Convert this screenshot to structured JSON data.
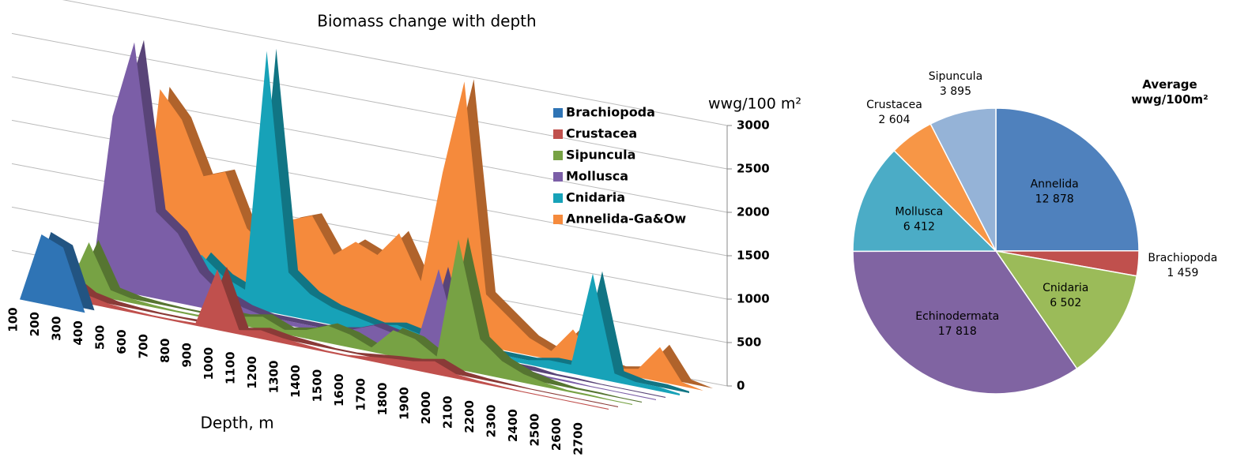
{
  "chart_data": [
    {
      "type": "area3d",
      "title": "Biomass change with depth",
      "x_label": "Depth, m",
      "y_label": "wwg/100 m²",
      "categories": [
        "100",
        "200",
        "300",
        "400",
        "500",
        "600",
        "700",
        "800",
        "900",
        "1000",
        "1100",
        "1200",
        "1300",
        "1400",
        "1500",
        "1600",
        "1700",
        "1800",
        "1900",
        "2000",
        "2100",
        "2200",
        "2300",
        "2400",
        "2500",
        "2600",
        "2700"
      ],
      "series": [
        {
          "name": "Brachiopoda",
          "color": "#2f74b5",
          "values": [
            0,
            800,
            700,
            0,
            0,
            0,
            0,
            0,
            0,
            0,
            0,
            0,
            0,
            0,
            0,
            0,
            0,
            0,
            0,
            0,
            0,
            0,
            0,
            0,
            0,
            0,
            0
          ]
        },
        {
          "name": "Crustacea",
          "color": "#c0504d",
          "values": [
            200,
            250,
            100,
            50,
            30,
            20,
            20,
            30,
            700,
            50,
            100,
            60,
            40,
            20,
            20,
            50,
            80,
            100,
            150,
            50,
            30,
            20,
            10,
            10,
            10,
            10,
            10
          ]
        },
        {
          "name": "Sipuncula",
          "color": "#77a244",
          "values": [
            0,
            600,
            100,
            50,
            30,
            20,
            20,
            100,
            100,
            150,
            50,
            100,
            200,
            150,
            50,
            300,
            250,
            100,
            1500,
            400,
            200,
            100,
            50,
            20,
            20,
            10,
            10
          ]
        },
        {
          "name": "Mollusca",
          "color": "#7b5ea7",
          "values": [
            0,
            2000,
            2900,
            1000,
            800,
            400,
            200,
            100,
            50,
            50,
            50,
            50,
            100,
            200,
            150,
            100,
            1000,
            100,
            50,
            50,
            50,
            20,
            20,
            10,
            10,
            10,
            10
          ]
        },
        {
          "name": "Cnidaria",
          "color": "#17a2b8",
          "values": [
            0,
            0,
            0,
            100,
            500,
            300,
            200,
            3000,
            500,
            300,
            200,
            150,
            100,
            150,
            100,
            50,
            50,
            50,
            50,
            50,
            100,
            100,
            1200,
            100,
            50,
            50,
            20
          ]
        },
        {
          "name": "Annelida-Ga&Ow",
          "color": "#f58a3c",
          "values": [
            0,
            2200,
            1900,
            1300,
            1400,
            800,
            600,
            1000,
            1100,
            700,
            900,
            800,
            1100,
            600,
            1900,
            3000,
            600,
            400,
            200,
            100,
            400,
            100,
            50,
            100,
            400,
            50,
            0
          ]
        }
      ],
      "ylim": [
        0,
        3000
      ],
      "yticks": [
        0,
        500,
        1000,
        1500,
        2000,
        2500,
        3000
      ],
      "grid": true
    },
    {
      "type": "pie",
      "title": "Average wwg/100m²",
      "categories": [
        "Annelida",
        "Brachiopoda",
        "Cnidaria",
        "Echinodermata",
        "Mollusca",
        "Crustacea",
        "Sipuncula"
      ],
      "values": [
        12878,
        1459,
        6502,
        17818,
        6412,
        2604,
        3895
      ],
      "value_labels": [
        "12 878",
        "1 459",
        "6 502",
        "17 818",
        "6 412",
        "2 604",
        "3 895"
      ],
      "colors": [
        "#4f81bd",
        "#c0504d",
        "#9bbb59",
        "#8064a2",
        "#4bacc6",
        "#f79646",
        "#95b3d7"
      ]
    }
  ]
}
